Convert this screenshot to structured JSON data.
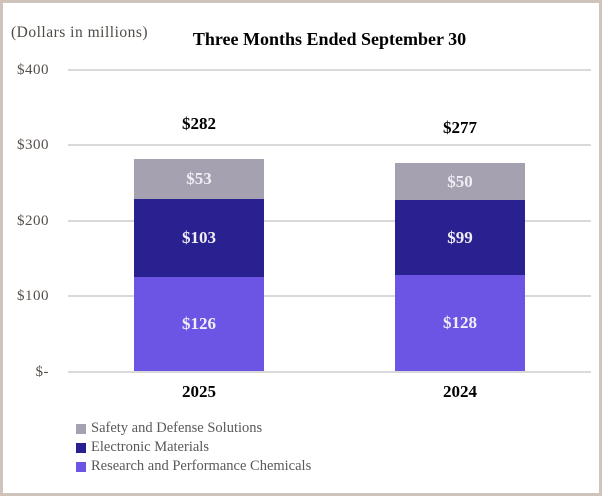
{
  "chart_data": {
    "type": "bar",
    "stacked": true,
    "title": "Three Months Ended September 30",
    "units_note": "(Dollars in millions)",
    "categories": [
      "2025",
      "2024"
    ],
    "series": [
      {
        "name": "Research and Performance Chemicals",
        "color": "#6c54e4",
        "values": [
          126,
          128
        ],
        "value_labels": [
          "$126",
          "$128"
        ]
      },
      {
        "name": "Electronic Materials",
        "color": "#2a2190",
        "values": [
          103,
          99
        ],
        "value_labels": [
          "$103",
          "$99"
        ]
      },
      {
        "name": "Safety and Defense Solutions",
        "color": "#a5a1b1",
        "values": [
          53,
          50
        ],
        "value_labels": [
          "$53",
          "$50"
        ]
      }
    ],
    "totals": [
      282,
      277
    ],
    "total_labels": [
      "$282",
      "$277"
    ],
    "ylim": [
      0,
      400
    ],
    "grid": true,
    "legend_position": "bottom-left",
    "y_axis": {
      "ticks": [
        {
          "label": "$400",
          "value": 400
        },
        {
          "label": "$300",
          "value": 300
        },
        {
          "label": "$200",
          "value": 200
        },
        {
          "label": "$100",
          "value": 100
        },
        {
          "label": "$-",
          "value": 0
        }
      ]
    },
    "legend": [
      {
        "label": "Safety and Defense Solutions",
        "color": "#a5a1b1"
      },
      {
        "label": "Electronic Materials",
        "color": "#2a2190"
      },
      {
        "label": "Research and Performance Chemicals",
        "color": "#6c54e4"
      }
    ]
  },
  "colors": {
    "page_border": "#cfc4bc",
    "gridline": "#d9d9d9",
    "title_text": "#000000",
    "axis_text": "#55504b",
    "legend_text": "#595959",
    "bar_value_text": "#f0eef4",
    "total_text": "#000000"
  }
}
